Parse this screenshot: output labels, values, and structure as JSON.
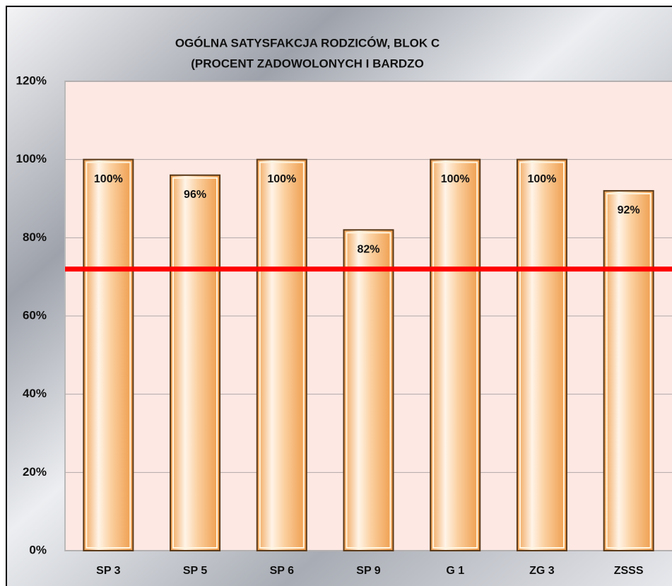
{
  "chart_data": {
    "type": "bar",
    "title": [
      "OGÓLNA SATYSFAKCJA RODZICÓW, BLOK C",
      "(PROCENT ZADOWOLONYCH I BARDZO"
    ],
    "categories": [
      "SP 3",
      "SP 5",
      "SP 6",
      "SP 9",
      "G 1",
      "ZG 3",
      "ZSSS"
    ],
    "values": [
      100,
      96,
      100,
      82,
      100,
      100,
      92
    ],
    "value_labels": [
      "100%",
      "96%",
      "100%",
      "82%",
      "100%",
      "100%",
      "92%"
    ],
    "color": "#f3a860",
    "ylim": [
      0,
      120
    ],
    "yticks": [
      {
        "value": 0,
        "label": "0%"
      },
      {
        "value": 20,
        "label": "20%"
      },
      {
        "value": 40,
        "label": "40%"
      },
      {
        "value": 60,
        "label": "60%"
      },
      {
        "value": 80,
        "label": "80%"
      },
      {
        "value": 100,
        "label": "100%"
      },
      {
        "value": 120,
        "label": "120%"
      }
    ],
    "grid": true,
    "reference_line": 72,
    "reference_color": "#ff0000"
  }
}
